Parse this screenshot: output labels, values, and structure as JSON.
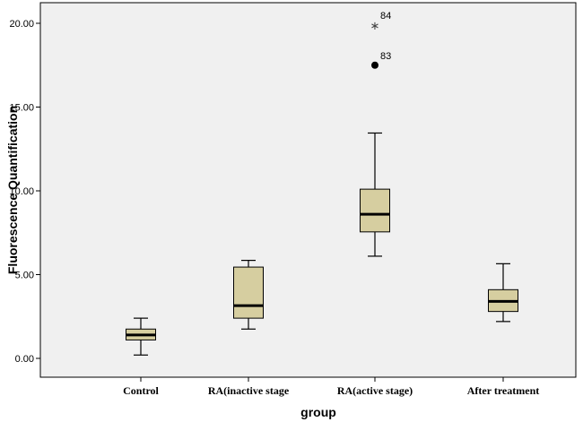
{
  "chart_data": {
    "type": "boxplot",
    "xlabel": "group",
    "ylabel": "Fluorescence Quantification",
    "ylim": [
      -1.0,
      21.0
    ],
    "yticks": [
      0.0,
      5.0,
      10.0,
      15.0,
      20.0
    ],
    "ytick_labels": [
      "0.00",
      "5.00",
      "10.00",
      "15.00",
      "20.00"
    ],
    "grid": false,
    "box_color": "#d6cea0",
    "plot_background": "#f0f0f0",
    "categories": [
      "Control",
      "RA(inactive stage",
      "RA(active stage)",
      "After treatment"
    ],
    "boxes": [
      {
        "min": 0.2,
        "q1": 1.1,
        "median": 1.4,
        "q3": 1.75,
        "max": 2.4,
        "outliers": []
      },
      {
        "min": 1.75,
        "q1": 2.4,
        "median": 3.15,
        "q3": 5.45,
        "max": 5.85,
        "outliers": []
      },
      {
        "min": 6.1,
        "q1": 7.55,
        "median": 8.6,
        "q3": 10.1,
        "max": 13.45,
        "outliers": [
          {
            "value": 17.5,
            "label": "83",
            "marker": "circle"
          },
          {
            "value": 19.9,
            "label": "84",
            "marker": "star"
          }
        ]
      },
      {
        "min": 2.2,
        "q1": 2.8,
        "median": 3.4,
        "q3": 4.1,
        "max": 5.65,
        "outliers": []
      }
    ]
  }
}
